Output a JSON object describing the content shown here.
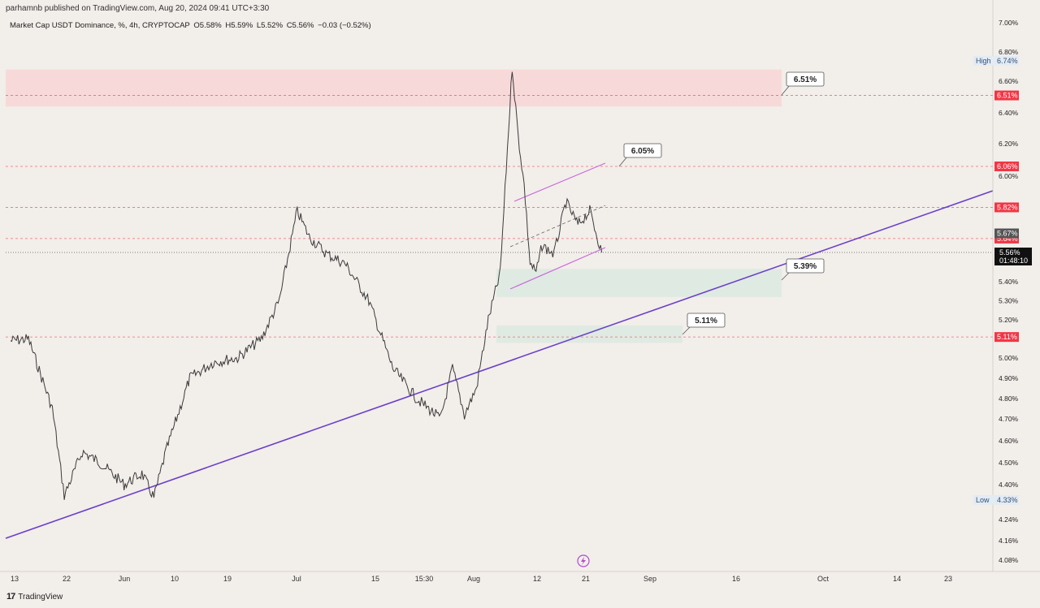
{
  "header": {
    "published": "parhamnb published on TradingView.com, Aug 20, 2024 09:41 UTC+3:30",
    "symbol": "Market Cap USDT Dominance, %, 4h, CRYPTOCAP",
    "open": "O5.58%",
    "high": "H5.59%",
    "low": "L5.52%",
    "close": "C5.56%",
    "change": "−0.03 (−0.52%)"
  },
  "footer": {
    "brand": "TradingView",
    "brand_mark": "17"
  },
  "chart_data": {
    "type": "line",
    "title": "",
    "y_axis_ticks": [
      "7.00%",
      "6.80%",
      "6.60%",
      "6.40%",
      "6.20%",
      "6.00%",
      "5.40%",
      "5.30%",
      "5.20%",
      "5.00%",
      "4.90%",
      "4.80%",
      "4.70%",
      "4.60%",
      "4.50%",
      "4.40%",
      "4.24%",
      "4.16%",
      "4.08%"
    ],
    "x_axis_ticks": [
      "13",
      "22",
      "Jun",
      "10",
      "19",
      "Jul",
      "15",
      "15:30",
      "Aug",
      "12",
      "21",
      "Sep",
      "16",
      "Oct",
      "14",
      "23"
    ],
    "ylim": [
      4.04,
      7.02
    ],
    "x_dates": [
      "2024-05-13",
      "2024-08-21"
    ],
    "series": [
      {
        "x": [
          "May 13",
          "May 16",
          "May 20",
          "May 22",
          "May 25",
          "May 28",
          "Jun 01",
          "Jun 04",
          "Jun 06",
          "Jun 08",
          "Jun 12",
          "Jun 16",
          "Jun 20",
          "Jun 24",
          "Jun 27",
          "Jun 30",
          "Jul 02",
          "Jul 05",
          "Jul 08",
          "Jul 12",
          "Jul 16",
          "Jul 20",
          "Jul 24",
          "Jul 26",
          "Jul 28",
          "Jul 30",
          "Aug 01",
          "Aug 03",
          "Aug 05",
          "Aug 06",
          "Aug 07",
          "Aug 08",
          "Aug 09",
          "Aug 10",
          "Aug 12",
          "Aug 14",
          "Aug 16",
          "Aug 18",
          "Aug 20"
        ],
        "values": [
          5.09,
          5.1,
          4.75,
          4.35,
          4.55,
          4.5,
          4.4,
          4.45,
          4.34,
          4.55,
          4.9,
          4.98,
          5.0,
          5.1,
          5.3,
          5.8,
          5.65,
          5.55,
          5.5,
          5.3,
          4.95,
          4.8,
          4.7,
          4.95,
          4.72,
          4.85,
          5.2,
          5.45,
          6.7,
          6.25,
          5.95,
          5.5,
          5.45,
          5.6,
          5.55,
          5.85,
          5.72,
          5.8,
          5.56
        ]
      }
    ],
    "levels": [
      {
        "value": "6.51%",
        "color": "#f23645"
      },
      {
        "value": "6.06%",
        "color": "#f23645"
      },
      {
        "value": "5.82%",
        "color": "#f23645"
      },
      {
        "value": "5.64%",
        "color": "#f23645"
      },
      {
        "value": "5.11%",
        "color": "#f23645"
      }
    ],
    "last_price": {
      "value": "5.56%",
      "countdown": "01:48:10"
    },
    "prev_value": "5.67%",
    "high": {
      "label": "High",
      "value": "6.74%"
    },
    "low": {
      "label": "Low",
      "value": "4.33%"
    },
    "callouts": [
      "6.51%",
      "6.05%",
      "5.39%",
      "5.11%"
    ],
    "zones": [
      {
        "from": 6.44,
        "to": 6.68,
        "color": "#f8d6d8"
      },
      {
        "from": 5.32,
        "to": 5.47,
        "color": "#dde9e1"
      },
      {
        "from": 5.08,
        "to": 5.17,
        "color": "#dde9e1"
      }
    ],
    "trendline": {
      "from": [
        "May 13",
        4.2
      ],
      "to": [
        "Aug 21",
        5.2
      ],
      "color": "#6a3fc8"
    },
    "grid": false,
    "legend": "none"
  }
}
